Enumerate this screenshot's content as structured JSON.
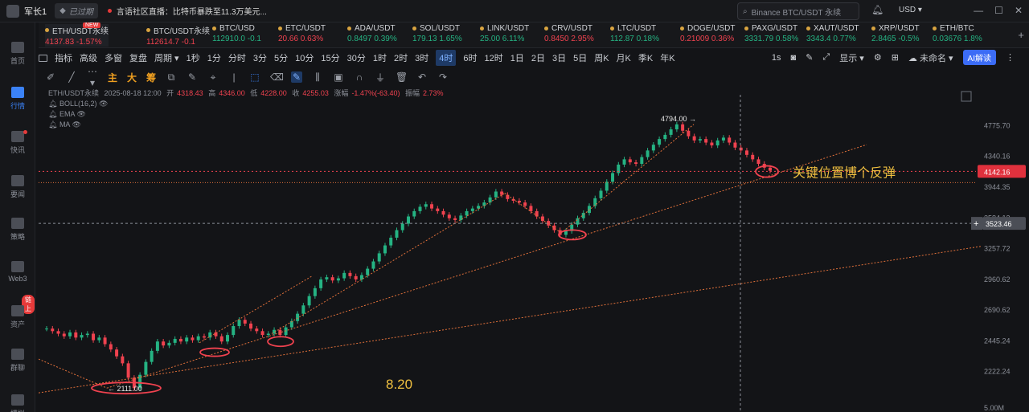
{
  "topbar": {
    "user": "军长1",
    "expired": "已过期",
    "news": "言语社区直播：比特币暴跌至11.3万美元...",
    "search_placeholder": "Binance BTC/USDT 永续",
    "currency": "USD"
  },
  "sidebar": [
    {
      "label": "首页"
    },
    {
      "label": "行情"
    },
    {
      "label": "快讯"
    },
    {
      "label": "要闻"
    },
    {
      "label": "策略"
    },
    {
      "label": "Web3"
    },
    {
      "label": "资产"
    },
    {
      "label": "群聊"
    },
    {
      "label": "模拟"
    }
  ],
  "sidebar_badge": "链上",
  "tickers": [
    {
      "name": "ETH/USDT永续",
      "price": "4137.83",
      "change": "-1.57%",
      "dir": "dn",
      "new": "NEW"
    },
    {
      "name": "BTC/USDT永续",
      "price": "112614.7",
      "change": "-0.1",
      "dir": "dn"
    },
    {
      "name": "BTC/USD",
      "price": "112910.0",
      "change": "-0.1",
      "dir": "up"
    },
    {
      "name": "ETC/USDT",
      "price": "20.66",
      "change": "0.63%",
      "dir": "dn"
    },
    {
      "name": "ADA/USDT",
      "price": "0.8497",
      "change": "0.39%",
      "dir": "up"
    },
    {
      "name": "SOL/USDT",
      "price": "179.13",
      "change": "1.65%",
      "dir": "up"
    },
    {
      "name": "LINK/USDT",
      "price": "25.00",
      "change": "6.11%",
      "dir": "up"
    },
    {
      "name": "CRV/USDT",
      "price": "0.8450",
      "change": "2.95%",
      "dir": "dn"
    },
    {
      "name": "LTC/USDT",
      "price": "112.87",
      "change": "0.18%",
      "dir": "up"
    },
    {
      "name": "DOGE/USDT",
      "price": "0.21009",
      "change": "0.36%",
      "dir": "dn"
    },
    {
      "name": "PAXG/USDT",
      "price": "3331.79",
      "change": "0.58%",
      "dir": "up"
    },
    {
      "name": "XAUT/USDT",
      "price": "3343.4",
      "change": "0.77%",
      "dir": "up"
    },
    {
      "name": "XRP/USDT",
      "price": "2.8465",
      "change": "-0.5%",
      "dir": "up"
    },
    {
      "name": "ETH/BTC",
      "price": "0.03676",
      "change": "1.8%",
      "dir": "up"
    }
  ],
  "toolbar1": {
    "items": [
      "指标",
      "高级",
      "多窗",
      "复盘",
      "周期",
      "1秒",
      "1分",
      "分时",
      "3分",
      "5分",
      "10分",
      "15分",
      "30分",
      "1时",
      "2时",
      "3时",
      "4时",
      "6时",
      "12时",
      "1日",
      "2日",
      "3日",
      "5日",
      "周K",
      "月K",
      "季K",
      "年K"
    ],
    "selected": "4时",
    "right": {
      "interval": "1s",
      "display": "显示",
      "layout": "未命名",
      "ai": "AI解读"
    }
  },
  "toolbar2": {
    "zh1": "主",
    "zh2": "大",
    "zh3": "筹"
  },
  "legend": {
    "symbol": "ETH/USDT永续",
    "date": "2025-08-18 12:00",
    "open_label": "开",
    "open": "4318.43",
    "high_label": "高",
    "high": "4346.00",
    "low_label": "低",
    "low": "4228.00",
    "close_label": "收",
    "close": "4255.03",
    "chg_label": "涨幅",
    "chg": "-1.47%(-63.40)",
    "amp_label": "振幅",
    "amp": "2.73%",
    "ind1": "BOLL(16,2)",
    "ind2": "EMA",
    "ind3": "MA"
  },
  "chart_data": {
    "type": "candlestick",
    "y_ticks": [
      "4775.70",
      "4340.16",
      "3944.35",
      "3584.13",
      "3257.72",
      "2960.62",
      "2690.62",
      "2445.24",
      "2222.24"
    ],
    "y_scale": "log",
    "ylim": [
      2060,
      5000
    ],
    "price_tag": "4142.16",
    "crosshair_tag": "3523.46",
    "high_label": "4794.00",
    "low_label": "2111.00",
    "annotation": "关键位置博个反弹",
    "date_label": "8.20",
    "volume_label": "5.00M",
    "closes": [
      2540,
      2520,
      2500,
      2480,
      2510,
      2470,
      2490,
      2500,
      2450,
      2470,
      2420,
      2380,
      2330,
      2280,
      2180,
      2111,
      2200,
      2290,
      2370,
      2440,
      2410,
      2430,
      2460,
      2440,
      2470,
      2450,
      2480,
      2470,
      2510,
      2480,
      2440,
      2490,
      2560,
      2610,
      2580,
      2540,
      2520,
      2490,
      2500,
      2530,
      2490,
      2550,
      2600,
      2660,
      2730,
      2810,
      2880,
      2960,
      2980,
      2950,
      2970,
      3020,
      2990,
      2960,
      3000,
      3060,
      3130,
      3210,
      3290,
      3370,
      3450,
      3520,
      3600,
      3660,
      3710,
      3740,
      3690,
      3660,
      3620,
      3580,
      3560,
      3610,
      3660,
      3690,
      3720,
      3760,
      3820,
      3890,
      3850,
      3800,
      3780,
      3760,
      3720,
      3660,
      3600,
      3550,
      3500,
      3450,
      3400,
      3440,
      3510,
      3580,
      3640,
      3720,
      3810,
      3900,
      4010,
      4120,
      4230,
      4300,
      4260,
      4240,
      4330,
      4420,
      4500,
      4580,
      4640,
      4720,
      4794,
      4700,
      4620,
      4560,
      4580,
      4530,
      4490,
      4560,
      4600,
      4530,
      4460,
      4420,
      4360,
      4300,
      4240,
      4190,
      4150
    ]
  }
}
